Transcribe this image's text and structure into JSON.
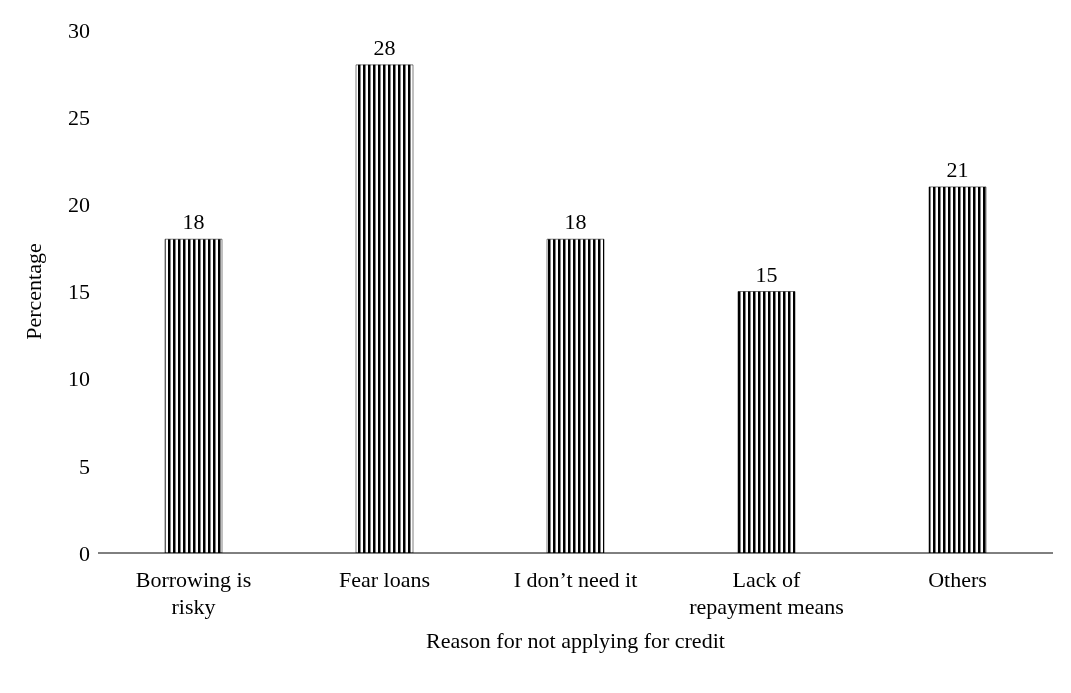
{
  "chart_data": {
    "type": "bar",
    "xlabel": "Reason for not applying for credit",
    "ylabel": "Percentage",
    "categories": [
      "Borrowing is risky",
      "Fear loans",
      "I don’t need it",
      "Lack of repayment means",
      "Others"
    ],
    "values": [
      18,
      28,
      18,
      15,
      21
    ],
    "color": "#000000",
    "ylim": [
      0,
      30
    ],
    "yticks": [
      0,
      5,
      10,
      15,
      20,
      25,
      30
    ],
    "grid": false,
    "data_labels": true
  }
}
